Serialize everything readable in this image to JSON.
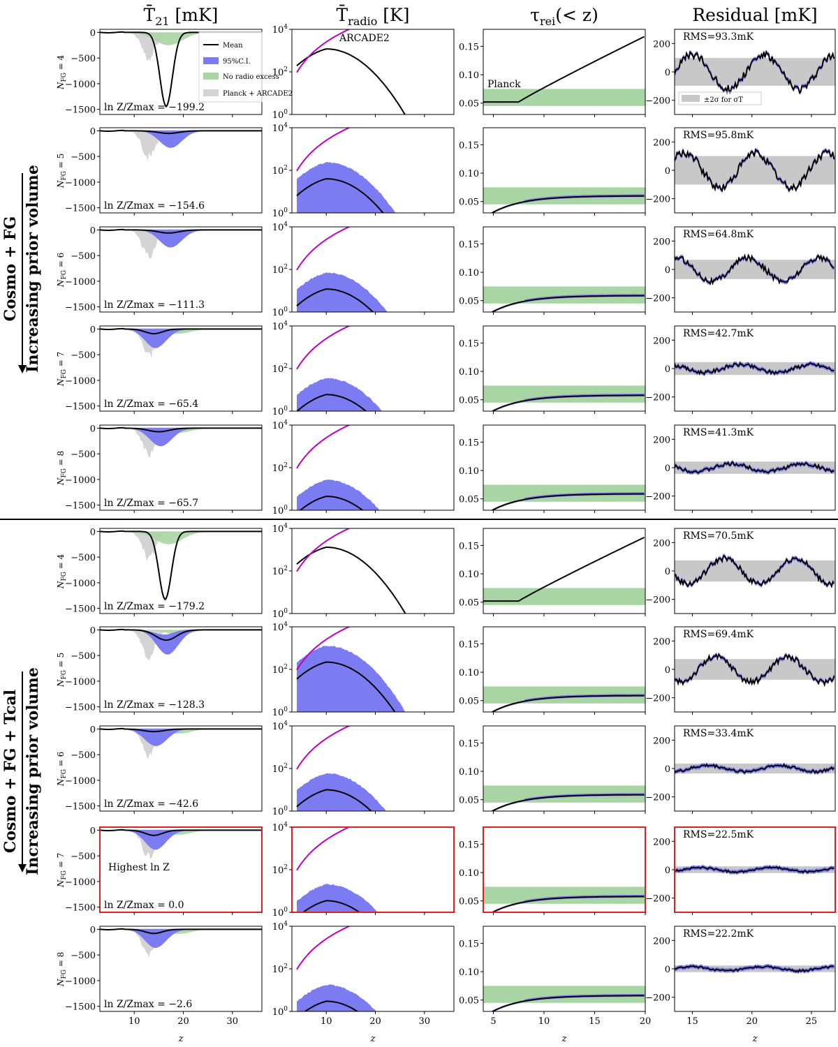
{
  "column_titles": [
    "T̄21 [mK]",
    "T̄radio [K]",
    "τrei(< z)",
    "Residual [mK]"
  ],
  "group_labels": {
    "top": [
      "Cosmo + FG",
      "Increasing prior volume"
    ],
    "bottom": [
      "Cosmo + FG + Tcal",
      "Increasing prior volume"
    ]
  },
  "panel_labels": {
    "arcade2": "ARCADE2",
    "planck": "Planck",
    "highest": "Highest ln Z",
    "residual_legend": "±2σ for σT"
  },
  "legend": [
    "Mean",
    "95%C.I.",
    "No radio excess",
    "Planck + ARCADE2"
  ],
  "xaxis_label": "z",
  "chart_data": [
    {
      "type": "area",
      "title": "T̄21 [mK]",
      "xlabel": "z",
      "xlim": [
        3,
        36
      ],
      "ylim": [
        -1600,
        60
      ],
      "xticks": [
        10,
        20,
        30
      ],
      "yticks": [
        0,
        -500,
        -1000,
        -1500
      ],
      "rows": [
        {
          "group": "Cosmo + FG",
          "n_fg": 4,
          "lnZ": "ln Z/Zmax = −199.2",
          "mean_depth": -1440,
          "mean_center": 16.5,
          "mean_width": 1.8
        },
        {
          "group": "Cosmo + FG",
          "n_fg": 5,
          "lnZ": "ln Z/Zmax = −154.6",
          "mean_depth": -50,
          "mean_center": 17,
          "mean_width": 3
        },
        {
          "group": "Cosmo + FG",
          "n_fg": 6,
          "lnZ": "ln Z/Zmax = −111.3",
          "mean_depth": -60,
          "mean_center": 17,
          "mean_width": 3
        },
        {
          "group": "Cosmo + FG",
          "n_fg": 7,
          "lnZ": "ln Z/Zmax = −65.4",
          "mean_depth": -90,
          "mean_center": 14,
          "mean_width": 2.5
        },
        {
          "group": "Cosmo + FG",
          "n_fg": 8,
          "lnZ": "ln Z/Zmax = −65.7",
          "mean_depth": -70,
          "mean_center": 15,
          "mean_width": 3
        },
        {
          "group": "Cosmo + FG + Tcal",
          "n_fg": 4,
          "lnZ": "ln Z/Zmax = −179.2",
          "mean_depth": -1320,
          "mean_center": 16.3,
          "mean_width": 1.8
        },
        {
          "group": "Cosmo + FG + Tcal",
          "n_fg": 5,
          "lnZ": "ln Z/Zmax = −128.3",
          "mean_depth": -200,
          "mean_center": 16.5,
          "mean_width": 3
        },
        {
          "group": "Cosmo + FG + Tcal",
          "n_fg": 6,
          "lnZ": "ln Z/Zmax = −42.6",
          "mean_depth": -50,
          "mean_center": 14,
          "mean_width": 3
        },
        {
          "group": "Cosmo + FG + Tcal",
          "n_fg": 7,
          "lnZ": "ln Z/Zmax = 0.0",
          "mean_depth": -100,
          "mean_center": 14,
          "mean_width": 2.5,
          "highlight": true
        },
        {
          "group": "Cosmo + FG + Tcal",
          "n_fg": 8,
          "lnZ": "ln Z/Zmax = −2.6",
          "mean_depth": -80,
          "mean_center": 14,
          "mean_width": 2.5
        }
      ]
    },
    {
      "type": "line",
      "title": "T̄radio [K]",
      "xlabel": "z",
      "xscale": "linear",
      "yscale": "log",
      "xlim": [
        3,
        36
      ],
      "ylim": [
        1,
        10000
      ],
      "xticks": [
        10,
        20,
        30
      ],
      "yticks": [
        "10^0",
        "10^2",
        "10^4"
      ],
      "rows": [
        {
          "n_fg": 4,
          "peak_K": 1200,
          "peak_z": 10
        },
        {
          "n_fg": 5,
          "peak_K": 40,
          "peak_z": 10
        },
        {
          "n_fg": 6,
          "peak_K": 12,
          "peak_z": 10
        },
        {
          "n_fg": 7,
          "peak_K": 6,
          "peak_z": 10
        },
        {
          "n_fg": 8,
          "peak_K": 4.5,
          "peak_z": 10
        },
        {
          "n_fg": 4,
          "peak_K": 1300,
          "peak_z": 10
        },
        {
          "n_fg": 5,
          "peak_K": 220,
          "peak_z": 10
        },
        {
          "n_fg": 6,
          "peak_K": 10,
          "peak_z": 10
        },
        {
          "n_fg": 7,
          "peak_K": 3.5,
          "peak_z": 10
        },
        {
          "n_fg": 8,
          "peak_K": 3,
          "peak_z": 10
        }
      ]
    },
    {
      "type": "line",
      "title": "τrei(< z)",
      "xlabel": "z",
      "xlim": [
        4,
        20
      ],
      "ylim": [
        0.03,
        0.18
      ],
      "xticks": [
        5,
        10,
        15,
        20
      ],
      "yticks": [
        0.05,
        0.1,
        0.15
      ],
      "planck_band": [
        0.045,
        0.075
      ],
      "rows": [
        {
          "n_fg": 4,
          "tau_final": 0.168
        },
        {
          "n_fg": 5,
          "tau_final": 0.06
        },
        {
          "n_fg": 6,
          "tau_final": 0.059
        },
        {
          "n_fg": 7,
          "tau_final": 0.058
        },
        {
          "n_fg": 8,
          "tau_final": 0.059
        },
        {
          "n_fg": 4,
          "tau_final": 0.165
        },
        {
          "n_fg": 5,
          "tau_final": 0.059
        },
        {
          "n_fg": 6,
          "tau_final": 0.059
        },
        {
          "n_fg": 7,
          "tau_final": 0.058
        },
        {
          "n_fg": 8,
          "tau_final": 0.058
        }
      ]
    },
    {
      "type": "line",
      "title": "Residual [mK]",
      "xlabel": "z",
      "xlim": [
        13.5,
        27
      ],
      "ylim": [
        -300,
        300
      ],
      "xticks": [
        15,
        20,
        25
      ],
      "yticks": [
        200,
        0,
        -200
      ],
      "rows": [
        {
          "n_fg": 4,
          "rms": "RMS=93.3mK",
          "rms_mK": 93.3
        },
        {
          "n_fg": 5,
          "rms": "RMS=95.8mK",
          "rms_mK": 95.8
        },
        {
          "n_fg": 6,
          "rms": "RMS=64.8mK",
          "rms_mK": 64.8
        },
        {
          "n_fg": 7,
          "rms": "RMS=42.7mK",
          "rms_mK": 42.7
        },
        {
          "n_fg": 8,
          "rms": "RMS=41.3mK",
          "rms_mK": 41.3
        },
        {
          "n_fg": 4,
          "rms": "RMS=70.5mK",
          "rms_mK": 70.5
        },
        {
          "n_fg": 5,
          "rms": "RMS=69.4mK",
          "rms_mK": 69.4
        },
        {
          "n_fg": 6,
          "rms": "RMS=33.4mK",
          "rms_mK": 33.4
        },
        {
          "n_fg": 7,
          "rms": "RMS=22.5mK",
          "rms_mK": 22.5
        },
        {
          "n_fg": 8,
          "rms": "RMS=22.2mK",
          "rms_mK": 22.2
        }
      ]
    }
  ],
  "colors": {
    "mean": "#000000",
    "ci": "#7b7bf2",
    "no_radio": "#a8d5a3",
    "planck_arcade": "#d4d4d4",
    "arcade_line": "#c000c0",
    "planck_band": "#a8d5a3",
    "highlight": "#e02020",
    "sigma_band": "#c8c8c8"
  }
}
